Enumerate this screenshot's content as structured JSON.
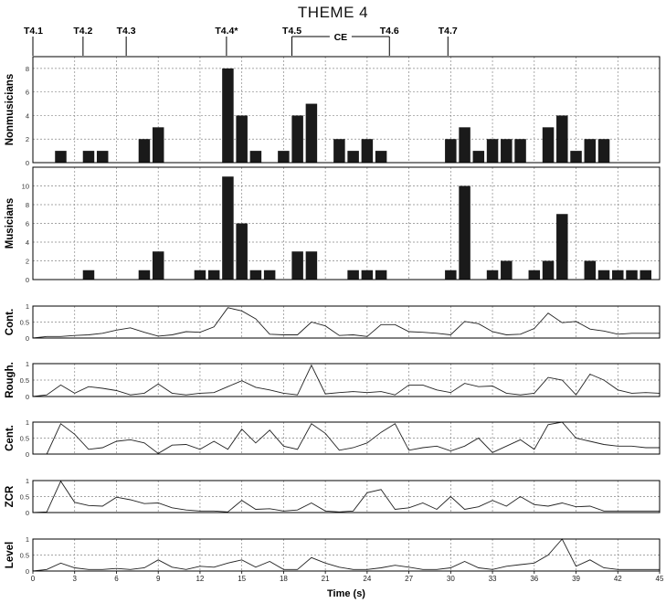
{
  "title": "THEME 4",
  "chart_data": {
    "type": "bar",
    "title": "THEME 4",
    "xlabel": "Time (s)",
    "xlim": [
      0,
      45
    ],
    "xticks": [
      0,
      3,
      6,
      9,
      12,
      15,
      18,
      21,
      24,
      27,
      30,
      33,
      36,
      39,
      42,
      45
    ],
    "grid": true,
    "markers": [
      {
        "label": "T4.1",
        "x": 0
      },
      {
        "label": "T4.2",
        "x": 3.6
      },
      {
        "label": "T4.3",
        "x": 6.7
      },
      {
        "label": "T4.4*",
        "x": 13.9
      },
      {
        "label": "T4.5",
        "x": 18.6
      },
      {
        "label": "T4.6",
        "x": 25.6
      },
      {
        "label": "T4.7",
        "x": 29.8
      }
    ],
    "bracket": {
      "label": "CE",
      "x_start": 18.6,
      "x_end": 25.6
    },
    "panels": [
      {
        "type": "bar",
        "ylabel": "Nonmusicians",
        "ylim": [
          0,
          9
        ],
        "yticks": [
          0,
          2,
          4,
          6,
          8
        ],
        "x": [
          2,
          4,
          5,
          8,
          9,
          14,
          15,
          16,
          18,
          19,
          20,
          22,
          23,
          24,
          25,
          30,
          31,
          32,
          33,
          34,
          35,
          37,
          38,
          39,
          40,
          41
        ],
        "values": [
          1,
          1,
          1,
          2,
          3,
          8,
          4,
          1,
          1,
          4,
          5,
          2,
          1,
          2,
          1,
          2,
          3,
          1,
          2,
          2,
          2,
          3,
          4,
          1,
          2,
          2
        ]
      },
      {
        "type": "bar",
        "ylabel": "Musicians",
        "ylim": [
          0,
          12
        ],
        "yticks": [
          0,
          2,
          4,
          6,
          8,
          10
        ],
        "x": [
          4,
          8,
          9,
          12,
          13,
          14,
          15,
          16,
          17,
          19,
          20,
          23,
          24,
          25,
          30,
          31,
          33,
          34,
          36,
          37,
          38,
          40,
          41,
          42,
          43,
          44
        ],
        "values": [
          1,
          1,
          3,
          1,
          1,
          11,
          6,
          1,
          1,
          3,
          3,
          1,
          1,
          1,
          1,
          10,
          1,
          2,
          1,
          2,
          7,
          2,
          1,
          1,
          1,
          1
        ]
      },
      {
        "type": "line",
        "ylabel": "Cont.",
        "ylim": [
          0,
          1
        ],
        "yticks": [
          0,
          0.5,
          1
        ],
        "x": [
          0,
          1,
          2,
          3,
          4,
          5,
          6,
          7,
          8,
          9,
          10,
          11,
          12,
          13,
          14,
          15,
          16,
          17,
          18,
          19,
          20,
          21,
          22,
          23,
          24,
          25,
          26,
          27,
          28,
          29,
          30,
          31,
          32,
          33,
          34,
          35,
          36,
          37,
          38,
          39,
          40,
          41,
          42,
          43,
          44,
          45
        ],
        "values": [
          0.0,
          0.05,
          0.05,
          0.08,
          0.1,
          0.15,
          0.25,
          0.32,
          0.18,
          0.06,
          0.1,
          0.2,
          0.18,
          0.35,
          0.95,
          0.85,
          0.6,
          0.12,
          0.1,
          0.1,
          0.5,
          0.38,
          0.08,
          0.1,
          0.05,
          0.42,
          0.42,
          0.2,
          0.18,
          0.15,
          0.1,
          0.52,
          0.45,
          0.2,
          0.1,
          0.12,
          0.3,
          0.78,
          0.48,
          0.52,
          0.28,
          0.22,
          0.12,
          0.15,
          0.15,
          0.15
        ]
      },
      {
        "type": "line",
        "ylabel": "Rough.",
        "ylim": [
          0,
          1
        ],
        "yticks": [
          0,
          0.5,
          1
        ],
        "x": [
          0,
          1,
          2,
          3,
          4,
          5,
          6,
          7,
          8,
          9,
          10,
          11,
          12,
          13,
          14,
          15,
          16,
          17,
          18,
          19,
          20,
          21,
          22,
          23,
          24,
          25,
          26,
          27,
          28,
          29,
          30,
          31,
          32,
          33,
          34,
          35,
          36,
          37,
          38,
          39,
          40,
          41,
          42,
          43,
          44,
          45
        ],
        "values": [
          0.0,
          0.05,
          0.35,
          0.1,
          0.3,
          0.25,
          0.18,
          0.05,
          0.1,
          0.38,
          0.1,
          0.05,
          0.1,
          0.12,
          0.3,
          0.48,
          0.28,
          0.2,
          0.1,
          0.05,
          0.95,
          0.08,
          0.12,
          0.15,
          0.12,
          0.15,
          0.05,
          0.35,
          0.35,
          0.2,
          0.12,
          0.4,
          0.3,
          0.32,
          0.1,
          0.05,
          0.1,
          0.58,
          0.5,
          0.05,
          0.68,
          0.5,
          0.2,
          0.1,
          0.12,
          0.1
        ]
      },
      {
        "type": "line",
        "ylabel": "Cent.",
        "ylim": [
          0,
          1
        ],
        "yticks": [
          0,
          0.5,
          1
        ],
        "x": [
          0,
          1,
          2,
          3,
          4,
          5,
          6,
          7,
          8,
          9,
          10,
          11,
          12,
          13,
          14,
          15,
          16,
          17,
          18,
          19,
          20,
          21,
          22,
          23,
          24,
          25,
          26,
          27,
          28,
          29,
          30,
          31,
          32,
          33,
          34,
          35,
          36,
          37,
          38,
          39,
          40,
          41,
          42,
          43,
          44,
          45
        ],
        "values": [
          0.0,
          0.0,
          0.95,
          0.62,
          0.15,
          0.2,
          0.4,
          0.45,
          0.35,
          0.02,
          0.28,
          0.3,
          0.15,
          0.4,
          0.15,
          0.78,
          0.35,
          0.75,
          0.25,
          0.15,
          0.95,
          0.65,
          0.12,
          0.2,
          0.35,
          0.68,
          0.95,
          0.12,
          0.2,
          0.25,
          0.1,
          0.25,
          0.5,
          0.05,
          0.25,
          0.45,
          0.15,
          0.92,
          1.0,
          0.5,
          0.4,
          0.3,
          0.25,
          0.25,
          0.2,
          0.2
        ]
      },
      {
        "type": "line",
        "ylabel": "ZCR",
        "ylim": [
          0,
          1
        ],
        "yticks": [
          0,
          0.5,
          1
        ],
        "x": [
          0,
          1,
          2,
          3,
          4,
          5,
          6,
          7,
          8,
          9,
          10,
          11,
          12,
          13,
          14,
          15,
          16,
          17,
          18,
          19,
          20,
          21,
          22,
          23,
          24,
          25,
          26,
          27,
          28,
          29,
          30,
          31,
          32,
          33,
          34,
          35,
          36,
          37,
          38,
          39,
          40,
          41,
          42,
          43,
          44,
          45
        ],
        "values": [
          0.0,
          0.02,
          0.98,
          0.32,
          0.22,
          0.2,
          0.48,
          0.4,
          0.28,
          0.3,
          0.15,
          0.08,
          0.05,
          0.05,
          0.02,
          0.38,
          0.1,
          0.12,
          0.05,
          0.08,
          0.3,
          0.05,
          0.02,
          0.05,
          0.62,
          0.72,
          0.1,
          0.15,
          0.3,
          0.1,
          0.5,
          0.1,
          0.18,
          0.38,
          0.2,
          0.5,
          0.25,
          0.2,
          0.3,
          0.18,
          0.2,
          0.05,
          0.05,
          0.05,
          0.05,
          0.05
        ]
      },
      {
        "type": "line",
        "ylabel": "Level",
        "ylim": [
          0,
          1
        ],
        "yticks": [
          0,
          0.5,
          1
        ],
        "x": [
          0,
          1,
          2,
          3,
          4,
          5,
          6,
          7,
          8,
          9,
          10,
          11,
          12,
          13,
          14,
          15,
          16,
          17,
          18,
          19,
          20,
          21,
          22,
          23,
          24,
          25,
          26,
          27,
          28,
          29,
          30,
          31,
          32,
          33,
          34,
          35,
          36,
          37,
          38,
          39,
          40,
          41,
          42,
          43,
          44,
          45
        ],
        "values": [
          0.0,
          0.05,
          0.25,
          0.1,
          0.05,
          0.05,
          0.08,
          0.05,
          0.1,
          0.35,
          0.12,
          0.05,
          0.15,
          0.12,
          0.25,
          0.35,
          0.12,
          0.3,
          0.05,
          0.05,
          0.42,
          0.25,
          0.12,
          0.05,
          0.05,
          0.1,
          0.18,
          0.12,
          0.05,
          0.05,
          0.1,
          0.3,
          0.1,
          0.05,
          0.15,
          0.2,
          0.25,
          0.5,
          1.0,
          0.15,
          0.35,
          0.1,
          0.05,
          0.05,
          0.05,
          0.05
        ]
      }
    ]
  }
}
